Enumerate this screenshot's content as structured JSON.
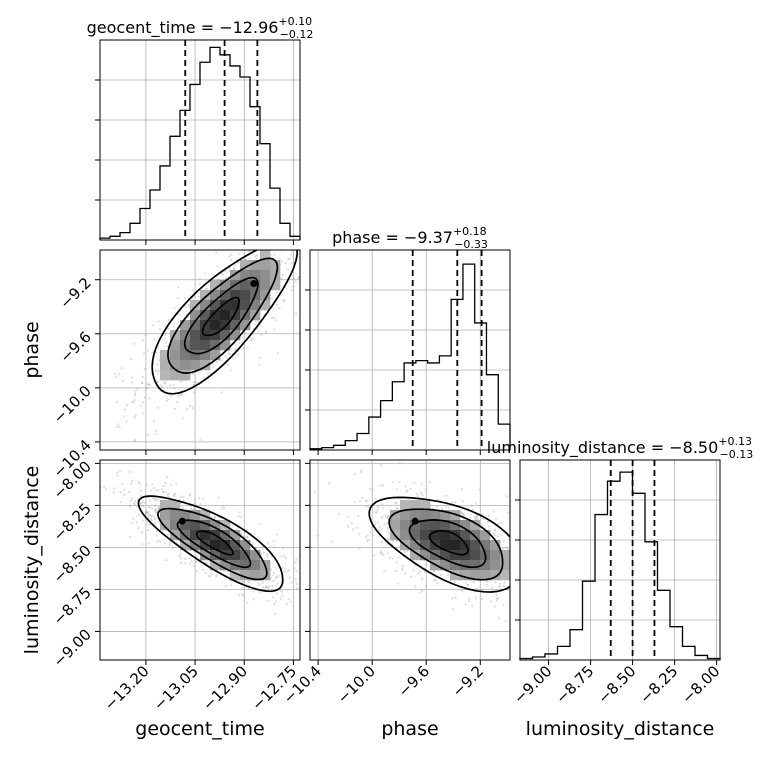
{
  "chart_data": {
    "type": "corner",
    "parameters": [
      {
        "key": "geocent_time",
        "label": "geocent_time",
        "range": [
          -13.34,
          -12.73
        ],
        "ticks": [
          -13.2,
          -13.05,
          -12.9,
          -12.75
        ],
        "tick_labels": [
          "−13.20",
          "−13.05",
          "−12.90",
          "−12.75"
        ],
        "quantiles": [
          -13.08,
          -12.96,
          -12.86
        ],
        "title_main": "geocent_time = −12.96",
        "title_plus": "+0.10",
        "title_minus": "−0.12",
        "histogram": [
          1,
          2,
          4,
          9,
          17,
          27,
          40,
          56,
          70,
          84,
          96,
          104,
          100,
          94,
          88,
          72,
          52,
          28,
          9,
          2
        ],
        "hist_max": 108
      },
      {
        "key": "phase",
        "label": "phase",
        "range": [
          -10.46,
          -8.98
        ],
        "ticks": [
          -10.4,
          -10.0,
          -9.6,
          -9.2
        ],
        "tick_labels": [
          "−10.4",
          "−10.0",
          "−9.6",
          "−9.2"
        ],
        "quantiles": [
          -9.7,
          -9.37,
          -9.19
        ],
        "title_main": "phase = −9.37",
        "title_plus": "+0.18",
        "title_minus": "−0.33",
        "histogram": [
          1,
          2,
          4,
          8,
          14,
          28,
          42,
          58,
          74,
          76,
          74,
          80,
          128,
          158,
          108,
          64,
          22
        ],
        "hist_max": 170
      },
      {
        "key": "luminosity_distance",
        "label": "luminosity_distance",
        "range": [
          -9.17,
          -7.98
        ],
        "ticks": [
          -9.0,
          -8.75,
          -8.5,
          -8.25,
          -8.0
        ],
        "tick_labels": [
          "−9.00",
          "−8.75",
          "−8.50",
          "−8.25",
          "−8.00"
        ],
        "quantiles": [
          -8.63,
          -8.5,
          -8.37
        ],
        "title_main": "luminosity_distance = −8.50",
        "title_plus": "+0.13",
        "title_minus": "−0.13",
        "histogram": [
          1,
          2,
          4,
          9,
          20,
          52,
          96,
          118,
          124,
          110,
          78,
          46,
          22,
          9,
          3,
          1
        ],
        "hist_max": 132
      }
    ],
    "correlations": {
      "phase|geocent_time": {
        "mean": [
          -12.97,
          -9.48
        ],
        "sd": [
          0.11,
          0.28
        ],
        "rho": 0.78
      },
      "luminosity_distance|geocent_time": {
        "mean": [
          -12.99,
          -8.47
        ],
        "sd": [
          0.11,
          0.14
        ],
        "rho": -0.8
      },
      "luminosity_distance|phase": {
        "mean": [
          -9.43,
          -8.47
        ],
        "sd": [
          0.28,
          0.14
        ],
        "rho": -0.55
      }
    },
    "contour_levels": [
      "0.5",
      "1.0",
      "1.5",
      "2.0"
    ],
    "grid": true
  }
}
